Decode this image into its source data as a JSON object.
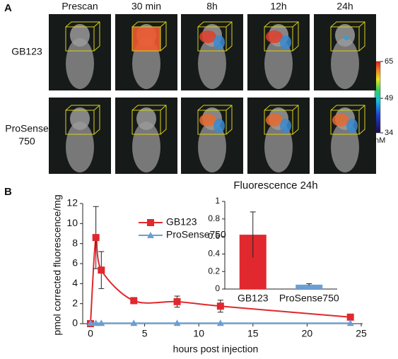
{
  "panel_a": {
    "label": "A",
    "columns": [
      "Prescan",
      "30 min",
      "8h",
      "12h",
      "24h"
    ],
    "rows": [
      [
        "GB123"
      ],
      [
        "ProSense",
        "750"
      ]
    ],
    "colorbar": {
      "lim": [
        34,
        65
      ],
      "ticks": [
        65,
        49,
        34
      ],
      "unit": "nM"
    }
  },
  "panel_b": {
    "label": "B"
  },
  "chart_data": [
    {
      "type": "line",
      "xlabel": "hours post injection",
      "ylabel": "pmol corrected fluorescence/mg",
      "x": [
        0,
        0.5,
        1,
        4,
        8,
        12,
        24
      ],
      "series": [
        {
          "name": "GB123",
          "color": "#e0282e",
          "marker": "square",
          "values": [
            0,
            8.6,
            5.35,
            2.3,
            2.2,
            1.75,
            0.65
          ],
          "errors": [
            0,
            3.1,
            1.85,
            0.3,
            0.55,
            0.6,
            0.1
          ]
        },
        {
          "name": "ProSense750",
          "color": "#6a9fd4",
          "marker": "triangle",
          "values": [
            0.05,
            0.05,
            0.05,
            0.05,
            0.05,
            0.05,
            0.05
          ]
        }
      ],
      "xlim": [
        0,
        25
      ],
      "xticks": [
        0,
        5,
        10,
        15,
        20,
        25
      ],
      "ylim": [
        0,
        12
      ],
      "yticks": [
        0,
        2,
        4,
        6,
        8,
        10,
        12
      ]
    },
    {
      "type": "bar",
      "title": "Fluorescence 24h",
      "categories": [
        "GB123",
        "ProSense750"
      ],
      "values": [
        0.62,
        0.05
      ],
      "errors": [
        0.26,
        0.01
      ],
      "colors": [
        "#e0282e",
        "#6a9fd4"
      ],
      "ylim": [
        0,
        1
      ],
      "yticks": [
        0,
        0.2,
        0.4,
        0.6,
        0.8,
        1
      ]
    }
  ]
}
